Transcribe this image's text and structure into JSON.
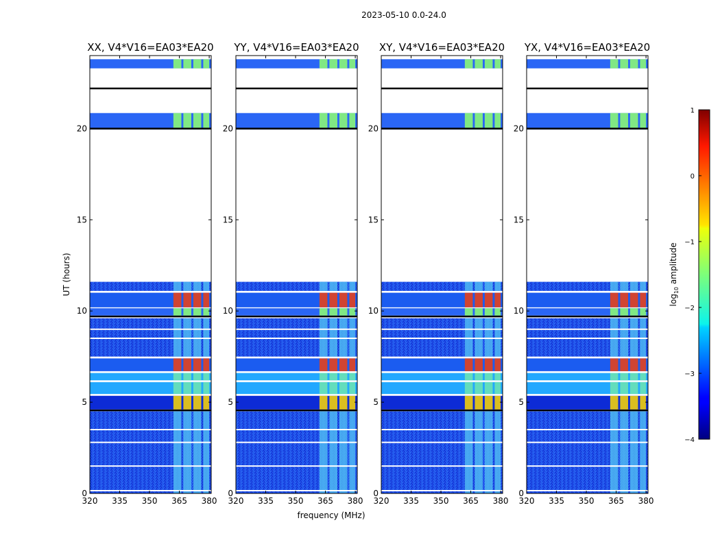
{
  "chart_data": {
    "type": "heatmap",
    "title": "2023-05-10 0.0-24.0",
    "xlabel": "frequency (MHz)",
    "ylabel": "UT (hours)",
    "xlim": [
      320,
      381
    ],
    "ylim": [
      0,
      24
    ],
    "xticks": [
      320,
      335,
      350,
      365,
      380
    ],
    "yticks": [
      0,
      5,
      10,
      15,
      20
    ],
    "panels": [
      {
        "title": "XX, V4*V16=EA03*EA20"
      },
      {
        "title": "YY, V4*V16=EA03*EA20"
      },
      {
        "title": "XY, V4*V16=EA03*EA20"
      },
      {
        "title": "YX, V4*V16=EA03*EA20"
      }
    ],
    "data_blocks": [
      {
        "t0": 0.0,
        "t1": 4.5,
        "level": "low"
      },
      {
        "t0": 4.6,
        "t1": 5.35,
        "level": "mid-high"
      },
      {
        "t0": 5.45,
        "t1": 6.1,
        "level": "low-mid"
      },
      {
        "t0": 6.2,
        "t1": 6.6,
        "level": "low-mid"
      },
      {
        "t0": 6.7,
        "t1": 7.4,
        "level": "high"
      },
      {
        "t0": 7.5,
        "t1": 9.6,
        "level": "low"
      },
      {
        "t0": 9.75,
        "t1": 10.15,
        "level": "mid"
      },
      {
        "t0": 10.2,
        "t1": 11.0,
        "level": "high"
      },
      {
        "t0": 11.1,
        "t1": 11.6,
        "level": "low"
      },
      {
        "t0": 19.95,
        "t1": 20.85,
        "level": "mid"
      },
      {
        "t0": 23.3,
        "t1": 23.8,
        "level": "mid"
      }
    ],
    "gaps_hours": [
      [
        11.6,
        19.95
      ],
      [
        20.85,
        23.3
      ]
    ],
    "signal_channels_mhz": [
      [
        362,
        366
      ],
      [
        367,
        371
      ],
      [
        372,
        376
      ],
      [
        377,
        380
      ]
    ],
    "colorbar": {
      "label": "log10 amplitude",
      "range": [
        -4,
        1
      ],
      "ticks": [
        1,
        0,
        -1,
        -2,
        -3,
        -4
      ],
      "tick_labels": [
        "1",
        "0",
        "−1",
        "−2",
        "−3",
        "−4"
      ],
      "colormap": "jet"
    }
  },
  "colors": {
    "background": "#ffffff",
    "axis": "#000000"
  }
}
